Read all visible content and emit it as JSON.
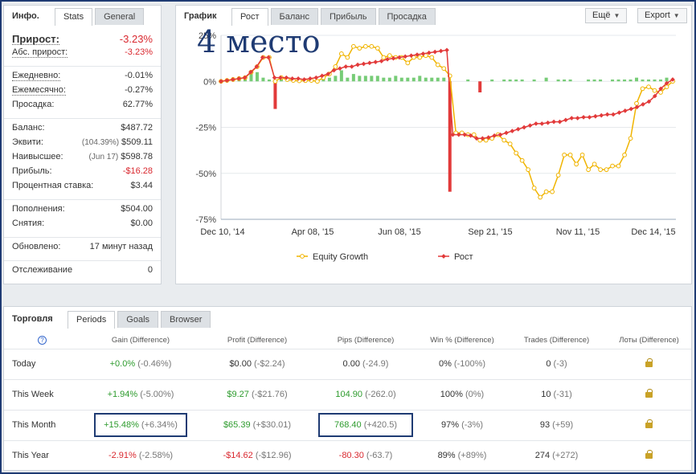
{
  "overlay": {
    "place_text": "4 место"
  },
  "info": {
    "title": "Инфо.",
    "tabs": [
      "Stats",
      "General"
    ],
    "rows": {
      "gain": {
        "label": "Прирост:",
        "value": "-3.23%"
      },
      "abs_gain": {
        "label": "Абс. прирост:",
        "value": "-3.23%"
      },
      "daily": {
        "label": "Ежедневно:",
        "value": "-0.01%"
      },
      "monthly": {
        "label": "Ежемесячно:",
        "value": "-0.27%"
      },
      "drawdown": {
        "label": "Просадка:",
        "value": "62.77%"
      },
      "balance": {
        "label": "Баланс:",
        "value": "$487.72"
      },
      "equity": {
        "label": "Эквити:",
        "sub": "(104.39%)",
        "value": "$509.11"
      },
      "highest": {
        "label": "Наивысшее:",
        "sub": "(Jun 17)",
        "value": "$598.78"
      },
      "profit": {
        "label": "Прибыль:",
        "value": "-$16.28"
      },
      "interest": {
        "label": "Процентная ставка:",
        "value": "$3.44"
      },
      "deposits": {
        "label": "Пополнения:",
        "value": "$504.00"
      },
      "withdrawals": {
        "label": "Снятия:",
        "value": "$0.00"
      },
      "updated": {
        "label": "Обновлено:",
        "value": "17 минут назад"
      },
      "tracking": {
        "label": "Отслеживание",
        "value": "0"
      }
    }
  },
  "chart_panel": {
    "title": "График",
    "tabs": [
      "Рост",
      "Баланс",
      "Прибыль",
      "Просадка"
    ],
    "more_label": "Ещё",
    "export_label": "Export"
  },
  "chart_data": {
    "type": "line",
    "y_ticks": [
      "25%",
      "0%",
      "-25%",
      "-50%",
      "-75%"
    ],
    "ylim": [
      -75,
      25
    ],
    "x_ticks": [
      "Dec 10, '14",
      "Apr 08, '15",
      "Jun 08, '15",
      "Sep 21, '15",
      "Nov 11, '15",
      "Dec 14, '15"
    ],
    "series": [
      {
        "name": "Equity Growth",
        "color": "#f0b400",
        "values": [
          0,
          0.5,
          1,
          1.5,
          2,
          5,
          8,
          13,
          13,
          0,
          2,
          1,
          0.5,
          0.3,
          0.4,
          0.5,
          0,
          2,
          4,
          8,
          15,
          13,
          19,
          18,
          19,
          19,
          18,
          13,
          14,
          13,
          13,
          10,
          13,
          13,
          14,
          13,
          9,
          7,
          3,
          -28,
          -28,
          -29,
          -29,
          -32,
          -32,
          -31,
          -29,
          -32,
          -34,
          -39,
          -43,
          -48,
          -58,
          -63,
          -60,
          -60,
          -51,
          -40,
          -40,
          -45,
          -40,
          -48,
          -45,
          -48,
          -48,
          -46,
          -46,
          -40,
          -31,
          -12,
          -4,
          -3,
          -5,
          -6,
          -3,
          0
        ]
      },
      {
        "name": "Рост",
        "color": "#e23a3a",
        "values": [
          0,
          0.5,
          1,
          1.5,
          2,
          5,
          8,
          13,
          13,
          2,
          2,
          2,
          1.5,
          1.5,
          1,
          1.5,
          2,
          3,
          4,
          6,
          7,
          8,
          8,
          9,
          9.5,
          10,
          10.5,
          11,
          12,
          12.5,
          13,
          13.5,
          14,
          14.5,
          15,
          15.5,
          16,
          16.5,
          17,
          -29,
          -29,
          -29,
          -29.5,
          -31,
          -31,
          -30.5,
          -29.5,
          -29,
          -28,
          -27,
          -26,
          -25,
          -24,
          -23,
          -23,
          -22.5,
          -22,
          -22,
          -21,
          -20,
          -20,
          -19.5,
          -19.5,
          -19,
          -18.5,
          -18,
          -18,
          -17,
          -16,
          -15,
          -14,
          -12.5,
          -11,
          -8,
          -4,
          -1,
          1
        ]
      }
    ],
    "bars": {
      "color_pos": "#77cc77",
      "color_neg": "#e23a3a",
      "values": [
        0,
        0,
        0,
        1,
        2,
        6,
        5,
        2,
        1,
        -15,
        2,
        1,
        0,
        0,
        0,
        0,
        1,
        2,
        2,
        3,
        6,
        2,
        4,
        3,
        3,
        3,
        3,
        2,
        2,
        3,
        2,
        2,
        2,
        3,
        2,
        2,
        2,
        2,
        -60,
        0,
        0,
        1,
        0,
        -6,
        0,
        1,
        0,
        1,
        1,
        1,
        1,
        0,
        1,
        0,
        2,
        0,
        1,
        1,
        1,
        0,
        0,
        1,
        1,
        1,
        0,
        1,
        1,
        1,
        1,
        2,
        1,
        1,
        1,
        1,
        2,
        1
      ]
    },
    "legend": [
      "Equity Growth",
      "Рост"
    ],
    "legend_position": "bottom"
  },
  "trading": {
    "title": "Торговля",
    "tabs": [
      "Periods",
      "Goals",
      "Browser"
    ],
    "help_label": "?",
    "headers": [
      "Gain (Difference)",
      "Profit (Difference)",
      "Pips (Difference)",
      "Win % (Difference)",
      "Trades (Difference)",
      "Лоты (Difference)"
    ],
    "rows": [
      {
        "period": "Today",
        "gain": "+0.0%",
        "gain_d": "(-0.46%)",
        "profit": "$0.00",
        "profit_d": "(-$2.24)",
        "pips": "0.00",
        "pips_d": "(-24.9)",
        "win": "0%",
        "win_d": "(-100%)",
        "trades": "0",
        "trades_d": "(-3)"
      },
      {
        "period": "This Week",
        "gain": "+1.94%",
        "gain_d": "(-5.00%)",
        "profit": "$9.27",
        "profit_d": "(-$21.76)",
        "pips": "104.90",
        "pips_d": "(-262.0)",
        "win": "100%",
        "win_d": "(0%)",
        "trades": "10",
        "trades_d": "(-31)"
      },
      {
        "period": "This Month",
        "gain": "+15.48%",
        "gain_d": "(+6.34%)",
        "profit": "$65.39",
        "profit_d": "(+$30.01)",
        "pips": "768.40",
        "pips_d": "(+420.5)",
        "win": "97%",
        "win_d": "(-3%)",
        "trades": "93",
        "trades_d": "(+59)"
      },
      {
        "period": "This Year",
        "gain": "-2.91%",
        "gain_d": "(-2.58%)",
        "profit": "-$14.62",
        "profit_d": "(-$12.96)",
        "pips": "-80.30",
        "pips_d": "(-63.7)",
        "win": "89%",
        "win_d": "(+89%)",
        "trades": "274",
        "trades_d": "(+272)"
      }
    ]
  }
}
